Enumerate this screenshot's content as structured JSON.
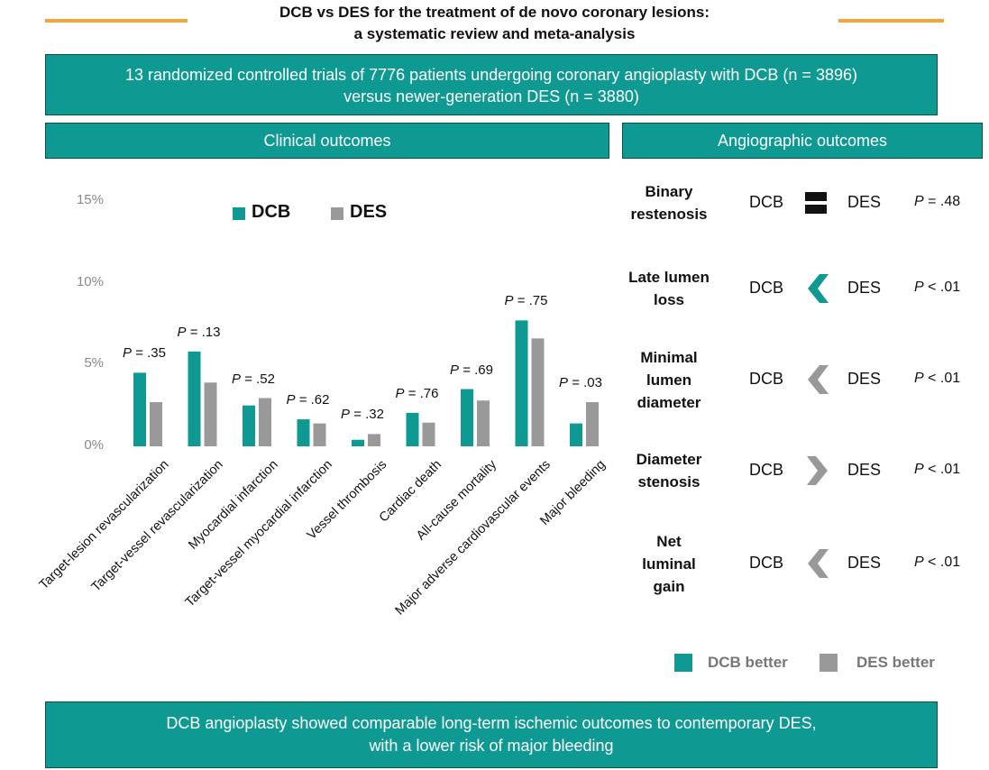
{
  "title": {
    "line1": "DCB vs DES for the treatment of de novo coronary lesions:",
    "line2": "a systematic review and meta-analysis"
  },
  "subtitle": {
    "line1": "13 randomized controlled trials of 7776 patients undergoing coronary angioplasty with DCB (n = 3896)",
    "line2": "versus newer-generation DES (n = 3880)"
  },
  "clinical_header": "Clinical outcomes",
  "angiographic_header": "Angiographic outcomes",
  "colors": {
    "teal": "#0e9a93",
    "gray": "#999999",
    "orange": "#f0a83a",
    "border": "#0b4f4b"
  },
  "chart_data": {
    "type": "bar",
    "title": "Clinical outcomes",
    "y_ticks": [
      "15%",
      "10%",
      "5%",
      "0%"
    ],
    "ylim": [
      0,
      15
    ],
    "legend": [
      "DCB",
      "DES"
    ],
    "categories": [
      "Target-lesion revascularization",
      "Target-vessel revascularization",
      "Myocardial infarction",
      "Target-vessel myocardial infarction",
      "Vessel thrombosis",
      "Cardiac death",
      "All-cause mortality",
      "Major adverse cardiovascular events",
      "Major bleeding"
    ],
    "series": [
      {
        "name": "DCB",
        "values": [
          4.5,
          5.8,
          2.5,
          1.65,
          0.4,
          2.05,
          3.5,
          7.7,
          1.4
        ]
      },
      {
        "name": "DES",
        "values": [
          2.7,
          3.9,
          2.95,
          1.4,
          0.75,
          1.45,
          2.8,
          6.6,
          2.7
        ]
      }
    ],
    "p_values": [
      "= .35",
      "= .13",
      "= .52",
      "= .62",
      "= .32",
      "= .76",
      "= .69",
      "= .75",
      "= .03"
    ]
  },
  "angiographic": {
    "items": [
      {
        "label_lines": [
          "Binary",
          "restenosis"
        ],
        "dcb": "DCB",
        "des": "DES",
        "p": "= .48",
        "direction": "equal"
      },
      {
        "label_lines": [
          "Late lumen",
          "loss"
        ],
        "dcb": "DCB",
        "des": "DES",
        "p": "< .01",
        "direction": "dcb"
      },
      {
        "label_lines": [
          "Minimal",
          "lumen",
          "diameter"
        ],
        "dcb": "DCB",
        "des": "DES",
        "p": "< .01",
        "direction": "des-left"
      },
      {
        "label_lines": [
          "Diameter",
          "stenosis"
        ],
        "dcb": "DCB",
        "des": "DES",
        "p": "< .01",
        "direction": "des-right"
      },
      {
        "label_lines": [
          "Net",
          "luminal",
          "gain"
        ],
        "dcb": "DCB",
        "des": "DES",
        "p": "< .01",
        "direction": "des-left"
      }
    ],
    "p_letter": "P",
    "legend": {
      "dcb_better": "DCB better",
      "des_better": "DES better"
    }
  },
  "conclusion": {
    "line1": "DCB angioplasty showed comparable long-term ischemic outcomes to contemporary DES,",
    "line2": "with a lower risk of major bleeding"
  }
}
